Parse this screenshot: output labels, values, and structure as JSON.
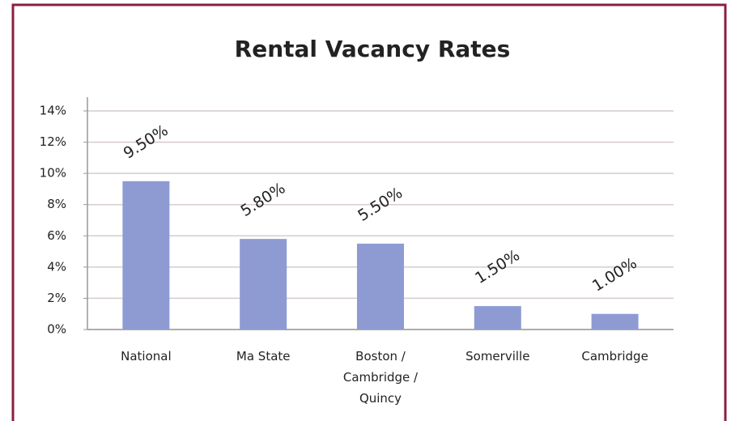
{
  "chart_data": {
    "type": "bar",
    "title": "Rental Vacancy Rates",
    "categories": [
      "National",
      "Ma State",
      "Boston / Cambridge / Quincy",
      "Somerville",
      "Cambridge"
    ],
    "values": [
      9.5,
      5.8,
      5.5,
      1.5,
      1.0
    ],
    "value_labels": [
      "9.50%",
      "5.80%",
      "5.50%",
      "1.50%",
      "1.00%"
    ],
    "color": "#8e9bd3",
    "ylim": [
      0,
      14
    ],
    "yticks": [
      {
        "value": 0,
        "label": "0%"
      },
      {
        "value": 2,
        "label": "2%"
      },
      {
        "value": 4,
        "label": "4%"
      },
      {
        "value": 6,
        "label": "6%"
      },
      {
        "value": 8,
        "label": "8%"
      },
      {
        "value": 10,
        "label": "10%"
      },
      {
        "value": 12,
        "label": "12%"
      },
      {
        "value": 14,
        "label": "14%"
      }
    ],
    "grid": true
  }
}
